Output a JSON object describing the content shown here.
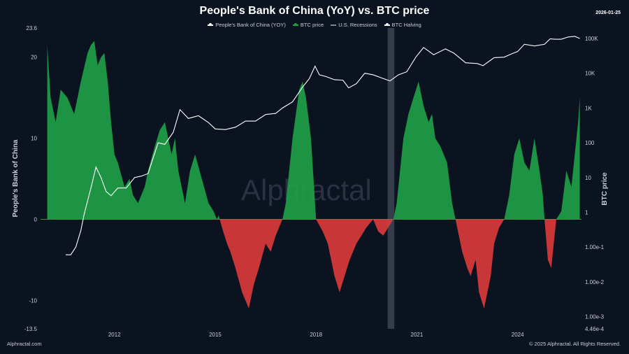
{
  "header": {
    "title": "People's Bank of China (YoY) vs. BTC price",
    "date": "2026-01-25"
  },
  "footer": {
    "left": "Alphractal.com",
    "right": "© 2025 Alphractal. All Rights Reserved."
  },
  "watermark": "Alphractal",
  "colors": {
    "positive": "#1fa048",
    "negative": "#d9393b",
    "btc_line": "#ffffff",
    "recession": "#3a4150",
    "background": "#0b1220"
  },
  "legend": [
    {
      "label": "People's Bank of China (YOY)",
      "color": "#c9ced8"
    },
    {
      "label": "BTC price",
      "color": "#1fa048"
    },
    {
      "label": "U.S. Recessions",
      "color": "#7d8596"
    },
    {
      "label": "BTC Halving",
      "color": "#c9ced8"
    }
  ],
  "chart_data": {
    "type": "area",
    "title": "People's Bank of China (YoY) vs. BTC price",
    "x_ticks": [
      "2012",
      "2015",
      "2018",
      "2021",
      "2024"
    ],
    "xlim": [
      2009.8,
      2025.9
    ],
    "y_left": {
      "label": "People's Bank of China",
      "ticks": [
        "23.6",
        "20",
        "10",
        "0",
        "-10",
        "-13.5"
      ],
      "range": [
        -13.5,
        23.6
      ]
    },
    "y_right": {
      "label": "BTC price",
      "scale": "log",
      "ticks": [
        "100K",
        "10K",
        "1K",
        "100",
        "10",
        "1",
        "1.00e-1",
        "1.00e-2",
        "1.00e-3",
        "4.46e-4"
      ],
      "range": [
        0.000446,
        200000
      ]
    },
    "recession": {
      "start": 2020.13,
      "end": 2020.33
    },
    "series": [
      {
        "name": "People's Bank of China (YOY)",
        "x": [
          2010.0,
          2010.1,
          2010.25,
          2010.4,
          2010.6,
          2010.8,
          2011.0,
          2011.2,
          2011.3,
          2011.4,
          2011.5,
          2011.6,
          2011.7,
          2011.8,
          2011.9,
          2012.0,
          2012.1,
          2012.3,
          2012.45,
          2012.55,
          2012.7,
          2012.9,
          2013.0,
          2013.2,
          2013.35,
          2013.5,
          2013.6,
          2013.7,
          2013.8,
          2013.9,
          2014.0,
          2014.1,
          2014.25,
          2014.4,
          2014.6,
          2014.8,
          2014.95,
          2015.05,
          2015.1,
          2015.2,
          2015.35,
          2015.45,
          2015.6,
          2015.8,
          2016.0,
          2016.15,
          2016.3,
          2016.5,
          2016.65,
          2016.8,
          2017.0,
          2017.1,
          2017.2,
          2017.3,
          2017.4,
          2017.5,
          2017.6,
          2017.7,
          2017.85,
          2018.0,
          2018.2,
          2018.35,
          2018.45,
          2018.55,
          2018.7,
          2018.85,
          2019.0,
          2019.2,
          2019.35,
          2019.5,
          2019.7,
          2019.85,
          2020.0,
          2020.15,
          2020.3,
          2020.4,
          2020.5,
          2020.6,
          2020.75,
          2020.9,
          2021.05,
          2021.2,
          2021.35,
          2021.45,
          2021.55,
          2021.7,
          2021.9,
          2022.05,
          2022.2,
          2022.35,
          2022.5,
          2022.6,
          2022.75,
          2022.85,
          2023.0,
          2023.1,
          2023.2,
          2023.3,
          2023.45,
          2023.6,
          2023.75,
          2023.9,
          2024.05,
          2024.2,
          2024.35,
          2024.5,
          2024.65,
          2024.75,
          2024.8,
          2024.9,
          2025.0,
          2025.15,
          2025.3,
          2025.45,
          2025.6,
          2025.7,
          2025.8,
          2025.85
        ],
        "values": [
          21.5,
          15,
          12,
          16,
          15,
          13,
          17,
          20.5,
          21.5,
          22,
          19,
          20,
          20.5,
          17,
          12,
          8,
          7,
          4,
          5,
          3,
          2,
          4,
          6,
          9,
          11,
          12,
          10,
          8,
          10,
          6,
          4,
          2,
          6,
          8,
          5,
          2,
          1,
          0,
          0.5,
          -1,
          -3,
          -4,
          -6,
          -9,
          -11,
          -8,
          -6,
          -3,
          -4,
          -2,
          0,
          2,
          6,
          10,
          13,
          16,
          17,
          15,
          10,
          0,
          -1.5,
          -3,
          -5,
          -7,
          -9,
          -7,
          -5,
          -3,
          -2,
          -1,
          0,
          -1.5,
          -2,
          -1,
          0,
          2,
          6,
          10,
          13,
          15,
          17,
          14,
          12,
          13,
          10,
          9,
          7,
          2,
          -1,
          -4,
          -6,
          -7,
          -5,
          -9,
          -11,
          -9,
          -7,
          -3,
          -1,
          0,
          3,
          8,
          10,
          7,
          6,
          10,
          6,
          3,
          0,
          -5,
          -6,
          0,
          1,
          6,
          4,
          8,
          12,
          15
        ]
      },
      {
        "name": "BTC price",
        "x": [
          2010.55,
          2010.7,
          2010.85,
          2011.0,
          2011.1,
          2011.3,
          2011.45,
          2011.6,
          2011.75,
          2011.9,
          2012.1,
          2012.35,
          2012.6,
          2012.8,
          2013.0,
          2013.3,
          2013.5,
          2013.75,
          2013.95,
          2014.2,
          2014.5,
          2014.8,
          2015.0,
          2015.3,
          2015.6,
          2015.9,
          2016.2,
          2016.5,
          2016.8,
          2017.0,
          2017.3,
          2017.6,
          2017.8,
          2017.97,
          2018.1,
          2018.3,
          2018.55,
          2018.8,
          2018.97,
          2019.2,
          2019.45,
          2019.7,
          2019.97,
          2020.2,
          2020.45,
          2020.7,
          2020.97,
          2021.2,
          2021.5,
          2021.85,
          2022.1,
          2022.45,
          2022.8,
          2022.97,
          2023.3,
          2023.6,
          2023.85,
          2024.0,
          2024.2,
          2024.5,
          2024.8,
          2024.97,
          2025.1,
          2025.3,
          2025.5,
          2025.7,
          2025.85
        ],
        "values": [
          0.06,
          0.06,
          0.1,
          0.3,
          0.9,
          5,
          20,
          10,
          4,
          3,
          5,
          5,
          10,
          11,
          13,
          100,
          90,
          200,
          900,
          500,
          600,
          380,
          250,
          240,
          280,
          420,
          420,
          650,
          700,
          1000,
          1500,
          4000,
          7000,
          16000,
          9000,
          8000,
          6500,
          6300,
          3800,
          5000,
          10000,
          9000,
          7200,
          6000,
          9000,
          11000,
          29000,
          55000,
          34000,
          50000,
          38000,
          20000,
          19000,
          16500,
          28000,
          29000,
          37000,
          42000,
          68000,
          61000,
          68000,
          98000,
          95000,
          95000,
          110000,
          115000,
          100000
        ]
      }
    ]
  }
}
